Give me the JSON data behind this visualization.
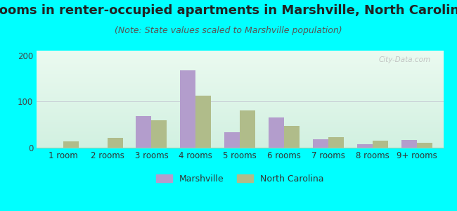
{
  "title": "Rooms in renter-occupied apartments in Marshville, North Carolina",
  "subtitle": "(Note: State values scaled to Marshville population)",
  "categories": [
    "1 room",
    "2 rooms",
    "3 rooms",
    "4 rooms",
    "5 rooms",
    "6 rooms",
    "7 rooms",
    "8 rooms",
    "9+ rooms"
  ],
  "marshville": [
    0,
    0,
    68,
    168,
    33,
    65,
    19,
    8,
    17
  ],
  "north_carolina": [
    14,
    21,
    60,
    113,
    80,
    47,
    23,
    15,
    11
  ],
  "marshville_color": "#b39dcc",
  "nc_color": "#b0bc8a",
  "background_color": "#00ffff",
  "ylim": [
    0,
    210
  ],
  "yticks": [
    0,
    100,
    200
  ],
  "bar_width": 0.35,
  "title_fontsize": 13,
  "subtitle_fontsize": 9,
  "tick_fontsize": 8.5,
  "legend_fontsize": 9,
  "watermark": "City-Data.com"
}
